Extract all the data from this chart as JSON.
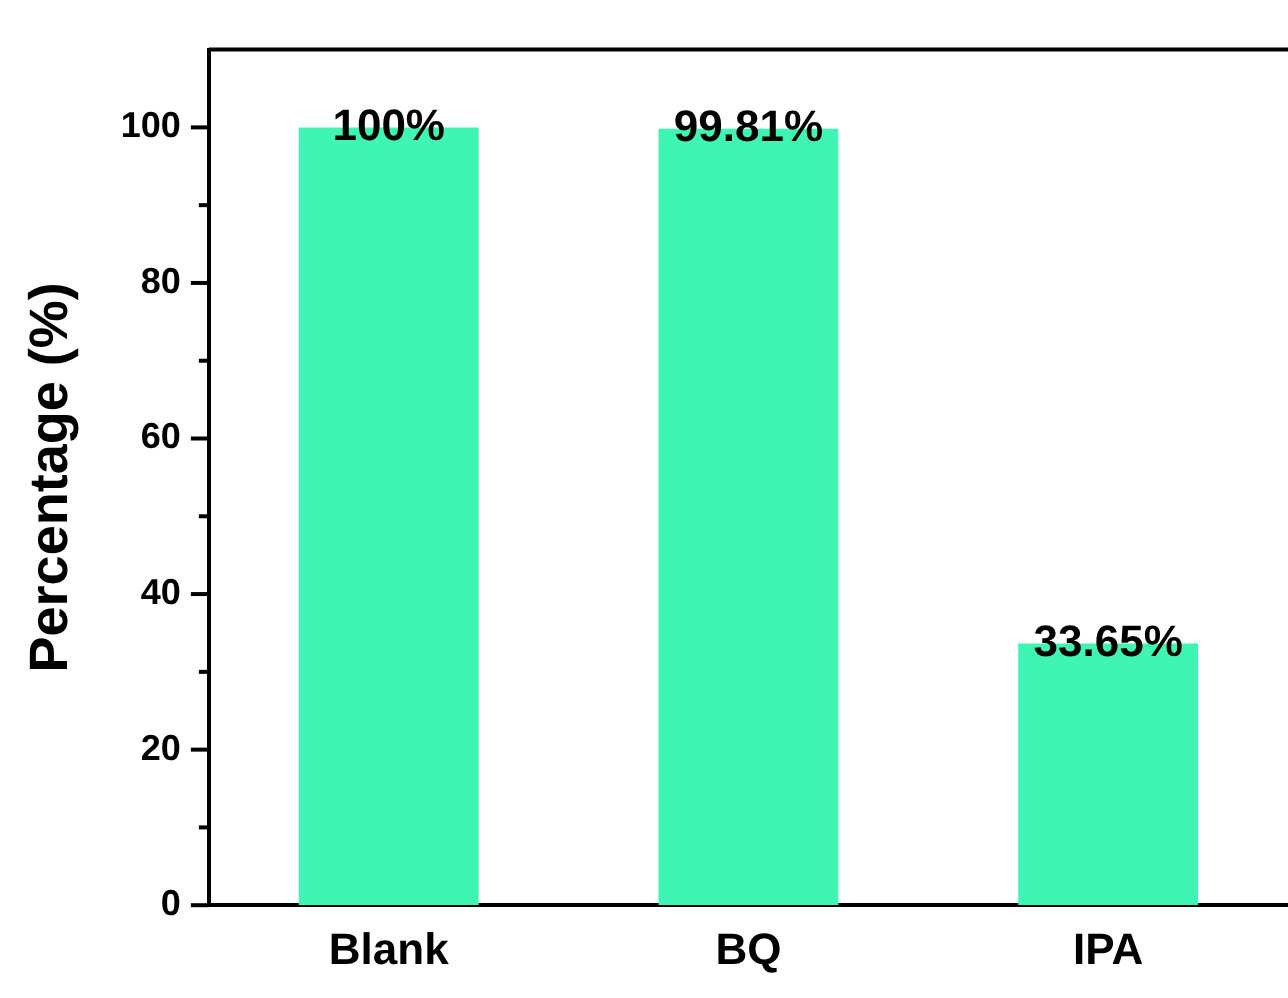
{
  "chart_data": {
    "type": "bar",
    "ylabel": "Percentage (%)",
    "categories": [
      "Blank",
      "BQ",
      "IPA"
    ],
    "values": [
      100,
      99.81,
      33.65
    ],
    "value_labels": [
      "100%",
      "99.81%",
      "33.65%"
    ],
    "color": "#3ff5b4",
    "ylim": [
      0,
      110
    ],
    "yticks": [
      0,
      {
        "value": 10,
        "label": null
      },
      20,
      {
        "value": 30,
        "label": null
      },
      40,
      {
        "value": 50,
        "label": null
      },
      60,
      {
        "value": 70,
        "label": null
      },
      80,
      {
        "value": 90,
        "label": null
      },
      100
    ],
    "grid": false,
    "legend": false
  }
}
